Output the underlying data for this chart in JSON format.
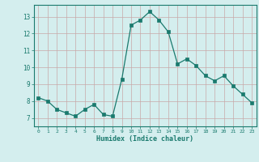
{
  "x": [
    0,
    1,
    2,
    3,
    4,
    5,
    6,
    7,
    8,
    9,
    10,
    11,
    12,
    13,
    14,
    15,
    16,
    17,
    18,
    19,
    20,
    21,
    22,
    23
  ],
  "y": [
    8.2,
    8.0,
    7.5,
    7.3,
    7.1,
    7.5,
    7.8,
    7.2,
    7.1,
    9.3,
    12.5,
    12.8,
    13.3,
    12.8,
    12.1,
    10.2,
    10.5,
    10.1,
    9.5,
    9.2,
    9.5,
    8.9,
    8.4,
    7.9
  ],
  "xlabel": "Humidex (Indice chaleur)",
  "xlim": [
    -0.5,
    23.5
  ],
  "ylim": [
    6.5,
    13.7
  ],
  "yticks": [
    7,
    8,
    9,
    10,
    11,
    12,
    13
  ],
  "xticks": [
    0,
    1,
    2,
    3,
    4,
    5,
    6,
    7,
    8,
    9,
    10,
    11,
    12,
    13,
    14,
    15,
    16,
    17,
    18,
    19,
    20,
    21,
    22,
    23
  ],
  "line_color": "#1a7a6e",
  "marker_color": "#1a7a6e",
  "grid_color": "#c8a8a8",
  "plot_bg": "#d4eeee",
  "fig_bg": "#d4eeee",
  "label_color": "#1a7a6e",
  "tick_color": "#1a7a6e",
  "spine_color": "#1a7a6e"
}
